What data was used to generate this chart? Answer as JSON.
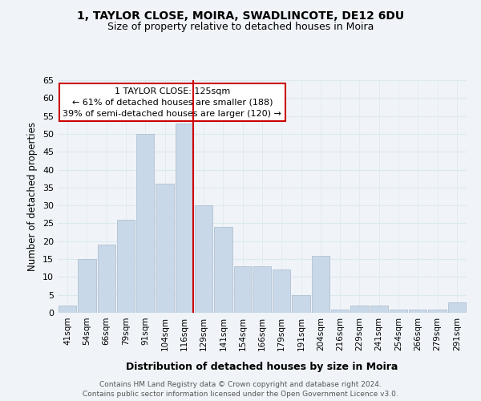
{
  "title1": "1, TAYLOR CLOSE, MOIRA, SWADLINCOTE, DE12 6DU",
  "title2": "Size of property relative to detached houses in Moira",
  "xlabel": "Distribution of detached houses by size in Moira",
  "ylabel": "Number of detached properties",
  "bar_labels": [
    "41sqm",
    "54sqm",
    "66sqm",
    "79sqm",
    "91sqm",
    "104sqm",
    "116sqm",
    "129sqm",
    "141sqm",
    "154sqm",
    "166sqm",
    "179sqm",
    "191sqm",
    "204sqm",
    "216sqm",
    "229sqm",
    "241sqm",
    "254sqm",
    "266sqm",
    "279sqm",
    "291sqm"
  ],
  "bar_values": [
    2,
    15,
    19,
    26,
    50,
    36,
    53,
    30,
    24,
    13,
    13,
    12,
    5,
    16,
    1,
    2,
    2,
    1,
    1,
    1,
    3
  ],
  "bar_color": "#c8d8e8",
  "bar_edge_color": "#aabbcc",
  "vline_color": "#cc0000",
  "annotation_title": "1 TAYLOR CLOSE: 125sqm",
  "annotation_line1": "← 61% of detached houses are smaller (188)",
  "annotation_line2": "39% of semi-detached houses are larger (120) →",
  "ylim": [
    0,
    65
  ],
  "yticks": [
    0,
    5,
    10,
    15,
    20,
    25,
    30,
    35,
    40,
    45,
    50,
    55,
    60,
    65
  ],
  "footer1": "Contains HM Land Registry data © Crown copyright and database right 2024.",
  "footer2": "Contains public sector information licensed under the Open Government Licence v3.0.",
  "bg_color": "#f0f4f8",
  "grid_color": "#dce8f0"
}
